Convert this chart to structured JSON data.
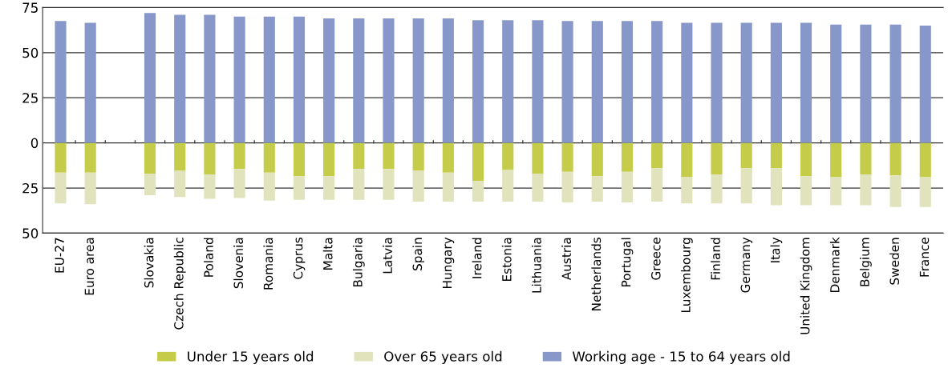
{
  "chart_data": {
    "type": "bar",
    "stacked": true,
    "categories": [
      "EU-27",
      "Euro area",
      null,
      "Slovakia",
      "Czech Republic",
      "Poland",
      "Slovenia",
      "Romania",
      "Cyprus",
      "Malta",
      "Bulgaria",
      "Latvia",
      "Spain",
      "Hungary",
      "Ireland",
      "Estonia",
      "Lithuania",
      "Austria",
      "Netherlands",
      "Portugal",
      "Greece",
      "Luxembourg",
      "Finland",
      "Germany",
      "Italy",
      "United Kingdom",
      "Denmark",
      "Belgium",
      "Sweden",
      "France"
    ],
    "series": [
      {
        "name": "Under 15 years old",
        "color": "#c4cc4a",
        "values": [
          -16.5,
          -16.5,
          null,
          -17,
          -15.5,
          -17.5,
          -14.5,
          -16.5,
          -18.5,
          -18.5,
          -14.5,
          -14.5,
          -15.5,
          -16.5,
          -21,
          -15,
          -17,
          -16,
          -18.5,
          -16,
          -14,
          -19,
          -17.5,
          -14,
          -14,
          -18.5,
          -19,
          -17.5,
          -18,
          -19
        ]
      },
      {
        "name": "Over 65 years old",
        "color": "#e0e3bc",
        "values": [
          -17,
          -17.5,
          null,
          -12,
          -14.5,
          -13.5,
          -16,
          -15.5,
          -13,
          -13,
          -17,
          -17,
          -17,
          -16,
          -11.5,
          -17.5,
          -15.5,
          -17,
          -14,
          -17,
          -18.5,
          -14.5,
          -16,
          -19.5,
          -20.5,
          -16,
          -15.5,
          -17,
          -17.5,
          -16.5
        ]
      },
      {
        "name": "Working age - 15 to 64 years old",
        "color": "#8797c9",
        "values": [
          67.5,
          66.5,
          null,
          72,
          71,
          71,
          70,
          70,
          70,
          69,
          69,
          69,
          69,
          69,
          68,
          68,
          68,
          67.5,
          67.5,
          67.5,
          67.5,
          66.5,
          66.5,
          66.5,
          66.5,
          66.5,
          65.5,
          65.5,
          65.5,
          65
        ]
      }
    ],
    "ylim": [
      -50,
      75
    ],
    "yticks": [
      {
        "value": -50,
        "label": "50"
      },
      {
        "value": -25,
        "label": "25"
      },
      0,
      25,
      50,
      75
    ],
    "grid": "y",
    "legend": "bottom"
  }
}
